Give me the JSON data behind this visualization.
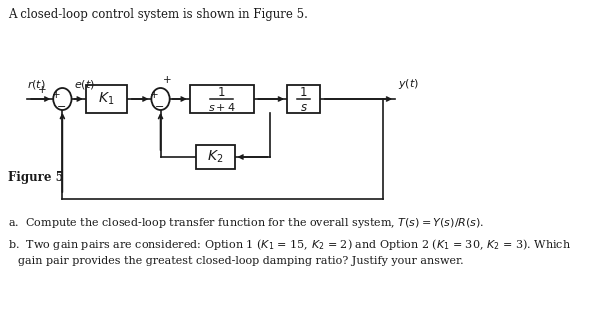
{
  "title_text": "A closed-loop control system is shown in Figure 5.",
  "figure_label": "Figure 5",
  "bg_color": "#ffffff",
  "text_color": "#1a1a1a",
  "line_color": "#1a1a1a"
}
